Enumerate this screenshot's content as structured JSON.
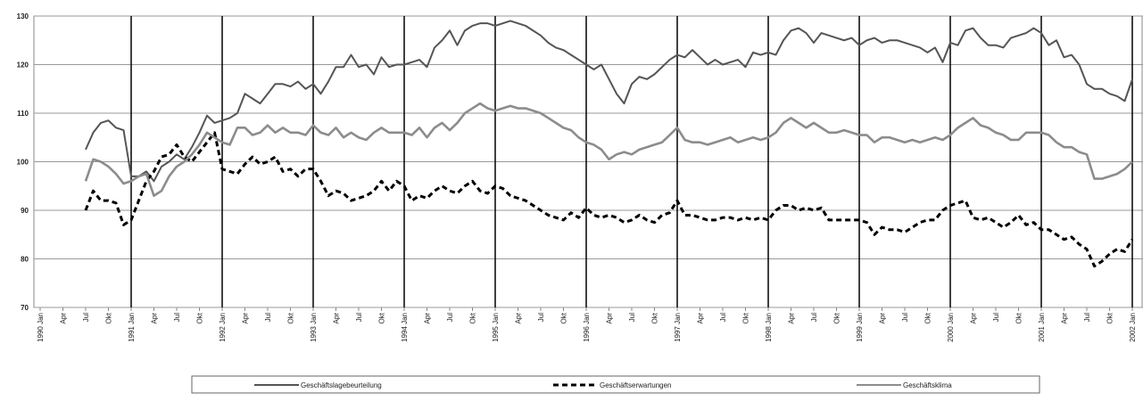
{
  "chart_data": {
    "type": "line",
    "categories": [
      "1990 Jan",
      null,
      null,
      "Apr",
      null,
      null,
      "Jul",
      null,
      null,
      "Okt",
      null,
      null,
      "1991 Jan",
      null,
      null,
      "Apr",
      null,
      null,
      "Jul",
      null,
      null,
      "Okt",
      null,
      null,
      "1992 Jan",
      null,
      null,
      "Apr",
      null,
      null,
      "Jul",
      null,
      null,
      "Okt",
      null,
      null,
      "1993 Jan",
      null,
      null,
      "Apr",
      null,
      null,
      "Jul",
      null,
      null,
      "Okt",
      null,
      null,
      "1994 Jan",
      null,
      null,
      "Apr",
      null,
      null,
      "Jul",
      null,
      null,
      "Okt",
      null,
      null,
      "1995 Jan",
      null,
      null,
      "Apr",
      null,
      null,
      "Jul",
      null,
      null,
      "Okt",
      null,
      null,
      "1996 Jan",
      null,
      null,
      "Apr",
      null,
      null,
      "Jul",
      null,
      null,
      "Okt",
      null,
      null,
      "1997 Jan",
      null,
      null,
      "Apr",
      null,
      null,
      "Jul",
      null,
      null,
      "Okt",
      null,
      null,
      "1998 Jan",
      null,
      null,
      "Apr",
      null,
      null,
      "Jul",
      null,
      null,
      "Okt",
      null,
      null,
      "1999 Jan",
      null,
      null,
      "Apr",
      null,
      null,
      "Jul",
      null,
      null,
      "Okt",
      null,
      null,
      "2000 Jan",
      null,
      null,
      "Apr",
      null,
      null,
      "Jul",
      null,
      null,
      "Okt",
      null,
      null,
      "2001 Jan",
      null,
      null,
      "Apr",
      null,
      null,
      "Jul",
      null,
      null,
      "Okt",
      null,
      null,
      "2002 Jan"
    ],
    "series": [
      {
        "name": "Geschäftslagebeurteilung",
        "color": "#555555",
        "dash": "solid",
        "values": [
          null,
          null,
          null,
          null,
          null,
          null,
          102.5,
          106,
          108,
          108.5,
          107,
          106.5,
          97,
          97,
          98,
          96,
          99,
          100,
          101.5,
          100.5,
          103,
          106,
          109.5,
          108,
          108.5,
          109,
          110,
          114,
          113,
          112,
          114,
          116,
          116,
          115.5,
          116.5,
          115,
          116,
          114,
          116.5,
          119.5,
          119.5,
          122,
          119.5,
          120,
          118,
          121.5,
          119.5,
          120,
          120,
          120.5,
          121,
          119.5,
          123.5,
          125,
          127,
          124,
          127,
          128,
          128.5,
          128.5,
          128,
          128.5,
          129,
          128.5,
          128,
          127,
          126,
          124.5,
          123.5,
          123,
          122,
          121,
          120,
          119,
          120,
          117,
          114,
          112,
          116,
          117.5,
          117,
          118,
          119.5,
          121,
          122,
          121.5,
          123,
          121.5,
          120,
          121,
          120,
          120.5,
          121,
          119.5,
          122.5,
          122,
          122.5,
          122,
          125,
          127,
          127.5,
          126.5,
          124.5,
          126.5,
          126,
          125.5,
          125,
          125.5,
          124,
          125,
          125.5,
          124.5,
          125,
          125,
          124.5,
          124,
          123.5,
          122.5,
          123.5,
          120.5,
          124.5,
          124,
          127,
          127.5,
          125.5,
          124,
          124,
          123.5,
          125.5,
          126,
          126.5,
          127.5,
          126.5,
          124,
          125,
          121.5,
          122,
          120,
          116,
          115,
          115,
          114,
          113.5,
          112.5,
          117
        ]
      },
      {
        "name": "Geschäftserwartungen",
        "color": "#000000",
        "dash": "dashed",
        "values": [
          null,
          null,
          null,
          null,
          null,
          null,
          90,
          94,
          92,
          92,
          91.5,
          87,
          88,
          92,
          96,
          98,
          101,
          101.5,
          103.5,
          101,
          100,
          102,
          104,
          106,
          98.5,
          98,
          97.5,
          99.5,
          101,
          99.5,
          100,
          101,
          98,
          98.5,
          97,
          98.5,
          98.5,
          96,
          93,
          94,
          93.5,
          92,
          92.5,
          93,
          94,
          96,
          94,
          96,
          95,
          92,
          93,
          92.5,
          94,
          95,
          94,
          93.5,
          95,
          96,
          94,
          93.5,
          95,
          94.5,
          93,
          92.5,
          92,
          91,
          90,
          89,
          88.5,
          88,
          89.5,
          88.5,
          90.5,
          89,
          88.5,
          89,
          88.5,
          87.5,
          88,
          89,
          88,
          87.5,
          89,
          89.5,
          92,
          89,
          89,
          88.5,
          88,
          88,
          88.5,
          88.5,
          88,
          88.5,
          88,
          88.5,
          88,
          90,
          91,
          91,
          90,
          90.5,
          90,
          90.5,
          88,
          88,
          88,
          88,
          88,
          87.5,
          85,
          86.5,
          86,
          86,
          85.5,
          86.5,
          87.5,
          88,
          88,
          90,
          91,
          91.5,
          92,
          88.5,
          88,
          88.5,
          87.5,
          86.5,
          87.5,
          89,
          87,
          87.5,
          86,
          86,
          85,
          84,
          84.5,
          83,
          82,
          78.5,
          79.5,
          81,
          82,
          81.5,
          84
        ]
      },
      {
        "name": "Geschäftsklima",
        "color": "#8c8c8c",
        "dash": "solid",
        "values": [
          null,
          null,
          null,
          null,
          null,
          null,
          96,
          100.5,
          100,
          99,
          97.5,
          95.5,
          96,
          97,
          97.5,
          93,
          94,
          97,
          99,
          100,
          101.5,
          103.5,
          106,
          105,
          104,
          103.5,
          107,
          107,
          105.5,
          106,
          107.5,
          106,
          107,
          106,
          106,
          105.5,
          107.5,
          106,
          105.5,
          107,
          105,
          106,
          105,
          104.5,
          106,
          107,
          106,
          106,
          106,
          105.5,
          107,
          105,
          107,
          108,
          106.5,
          108,
          110,
          111,
          112,
          111,
          110.5,
          111,
          111.5,
          111,
          111,
          110.5,
          110,
          109,
          108,
          107,
          106.5,
          105,
          104,
          103.5,
          102.5,
          100.5,
          101.5,
          102,
          101.5,
          102.5,
          103,
          103.5,
          104,
          105.5,
          107,
          104.5,
          104,
          104,
          103.5,
          104,
          104.5,
          105,
          104,
          104.5,
          105,
          104.5,
          105,
          106,
          108,
          109,
          108,
          107,
          108,
          107,
          106,
          106,
          106.5,
          106,
          105.5,
          105.5,
          104,
          105,
          105,
          104.5,
          104,
          104.5,
          104,
          104.5,
          105,
          104.5,
          105.5,
          107,
          108,
          109,
          107.5,
          107,
          106,
          105.5,
          104.5,
          104.5,
          106,
          106,
          106,
          105.5,
          104,
          103,
          103,
          102,
          101.5,
          96.5,
          96.5,
          97,
          97.5,
          98.5,
          100
        ]
      }
    ],
    "ylim": [
      70,
      130
    ],
    "yticks": [
      70,
      80,
      90,
      100,
      110,
      120,
      130
    ],
    "grid": true,
    "legend": "bottom"
  }
}
